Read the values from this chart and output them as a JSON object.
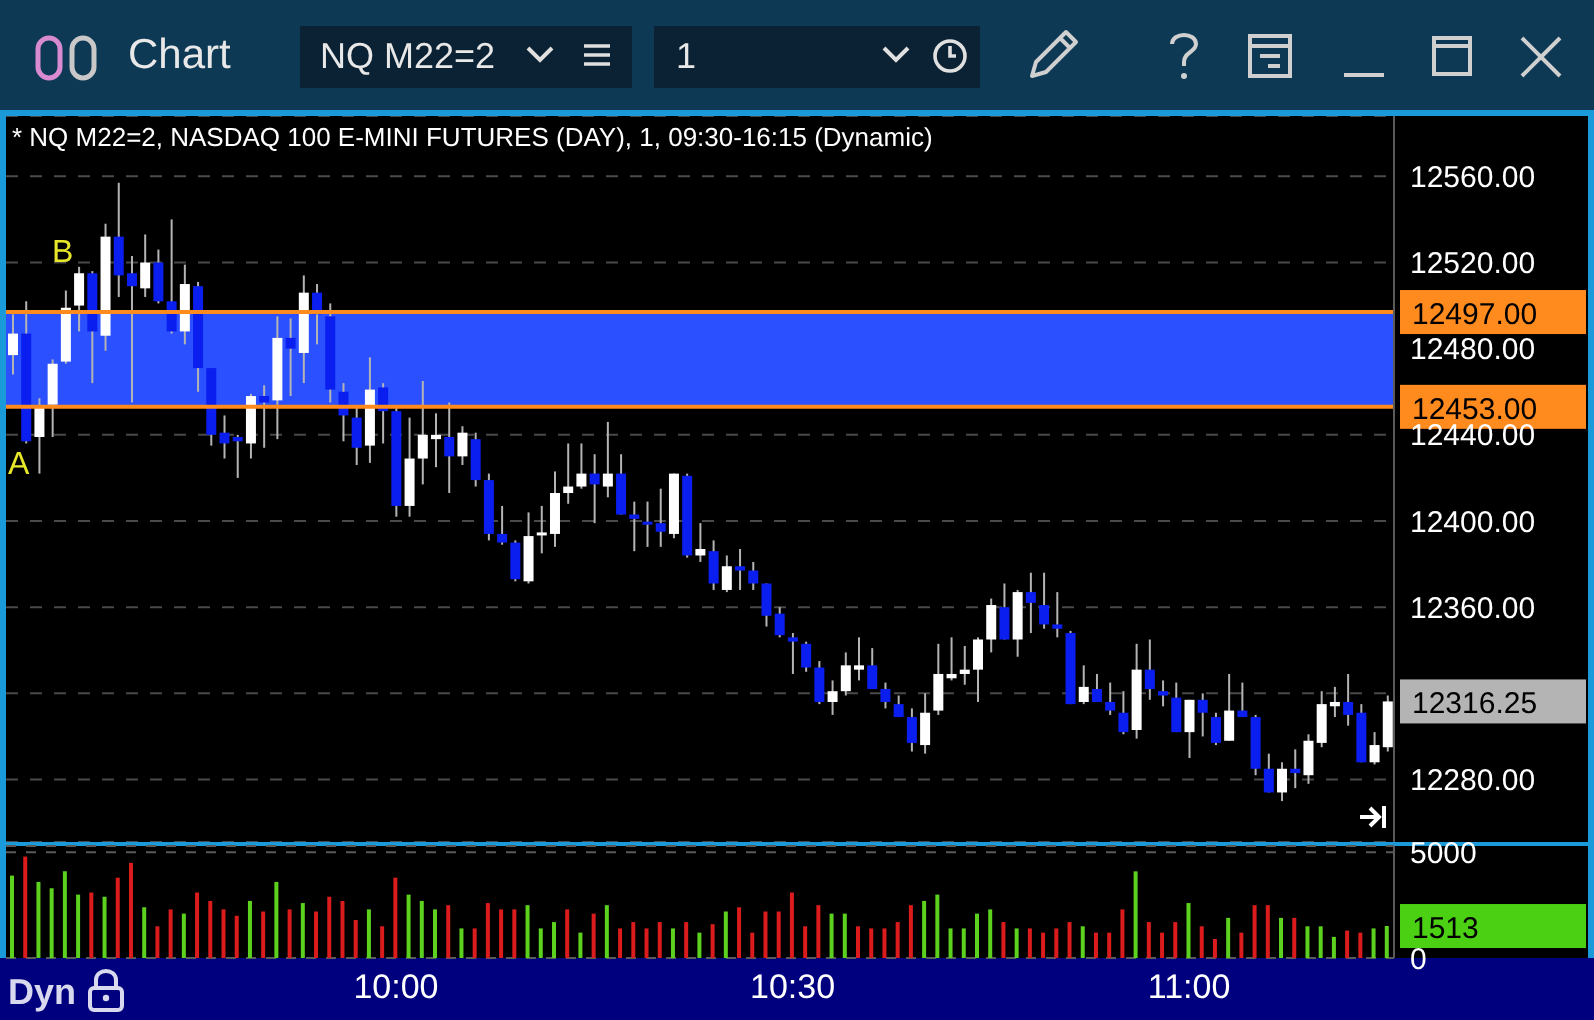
{
  "chart_data": [
    {
      "type": "candlestick",
      "title": "* NQ M22=2, NASDAQ 100 E-MINI FUTURES (DAY), 1, 09:30-16:15 (Dynamic)",
      "categories": [
        null,
        null,
        null,
        null,
        null,
        null,
        null,
        null,
        null,
        null,
        null,
        null,
        null,
        null,
        null,
        null,
        null,
        null,
        null,
        null,
        null,
        null,
        null,
        null,
        null,
        null,
        null,
        null,
        null,
        null,
        null,
        null,
        null,
        null,
        null,
        null,
        null,
        null,
        null,
        null,
        null,
        null,
        null,
        null,
        null,
        null,
        null,
        null,
        null,
        null,
        null,
        null,
        null,
        null,
        null,
        null,
        null,
        null,
        null,
        null,
        null,
        null,
        null,
        null,
        null,
        null,
        null,
        null,
        null,
        null,
        null,
        null,
        null,
        null,
        null,
        null,
        null,
        null,
        null,
        null,
        null,
        null,
        null,
        null,
        null,
        null,
        null,
        null,
        null,
        null,
        null,
        null,
        null,
        null,
        null,
        null,
        null,
        null,
        null,
        null,
        null,
        null,
        null,
        null,
        null
      ],
      "ohlc": [
        [
          12477,
          12496,
          12468,
          12487
        ],
        [
          12487,
          12502,
          12436,
          12437
        ],
        [
          12439,
          12457,
          12422,
          12453
        ],
        [
          12454,
          12475,
          12439,
          12473
        ],
        [
          12474,
          12507,
          12473,
          12499
        ],
        [
          12500,
          12518,
          12488,
          12515
        ],
        [
          12515,
          12516,
          12464,
          12488
        ],
        [
          12486,
          12538,
          12479,
          12532
        ],
        [
          12532,
          12557,
          12504,
          12514
        ],
        [
          12515,
          12523,
          12455,
          12509
        ],
        [
          12508,
          12533,
          12504,
          12520
        ],
        [
          12520,
          12526,
          12501,
          12502
        ],
        [
          12502,
          12540,
          12487,
          12488
        ],
        [
          12488,
          12519,
          12482,
          12510
        ],
        [
          12509,
          12511,
          12460,
          12471
        ],
        [
          12471,
          12471,
          12435,
          12440
        ],
        [
          12441,
          12449,
          12429,
          12436
        ],
        [
          12439,
          12440,
          12420,
          12437
        ],
        [
          12436,
          12459,
          12429,
          12458
        ],
        [
          12458,
          12463,
          12434,
          12455
        ],
        [
          12456,
          12495,
          12438,
          12485
        ],
        [
          12485,
          12494,
          12458,
          12480
        ],
        [
          12478,
          12514,
          12464,
          12506
        ],
        [
          12506,
          12510,
          12482,
          12496
        ],
        [
          12495,
          12501,
          12455,
          12461
        ],
        [
          12460,
          12464,
          12437,
          12449
        ],
        [
          12448,
          12453,
          12426,
          12434
        ],
        [
          12435,
          12476,
          12427,
          12461
        ],
        [
          12462,
          12464,
          12436,
          12451
        ],
        [
          12451,
          12453,
          12402,
          12407
        ],
        [
          12407,
          12448,
          12402,
          12429
        ],
        [
          12429,
          12465,
          12417,
          12440
        ],
        [
          12438,
          12450,
          12425,
          12440
        ],
        [
          12439,
          12455,
          12413,
          12430
        ],
        [
          12430,
          12444,
          12426,
          12441
        ],
        [
          12438,
          12441,
          12416,
          12419
        ],
        [
          12419,
          12422,
          12391,
          12394
        ],
        [
          12394,
          12407,
          12389,
          12390
        ],
        [
          12390,
          12391,
          12372,
          12373
        ],
        [
          12372,
          12404,
          12371,
          12393
        ],
        [
          12393,
          12407,
          12385,
          12394
        ],
        [
          12394,
          12423,
          12388,
          12413
        ],
        [
          12413,
          12436,
          12408,
          12416
        ],
        [
          12416,
          12436,
          12415,
          12422
        ],
        [
          12422,
          12431,
          12399,
          12417
        ],
        [
          12416,
          12446,
          12411,
          12422
        ],
        [
          12422,
          12431,
          12403,
          12403
        ],
        [
          12403,
          12409,
          12386,
          12401
        ],
        [
          12399,
          12409,
          12388,
          12398
        ],
        [
          12399,
          12415,
          12388,
          12395
        ],
        [
          12394,
          12422,
          12392,
          12422
        ],
        [
          12421,
          12422,
          12383,
          12384
        ],
        [
          12384,
          12399,
          12381,
          12387
        ],
        [
          12386,
          12391,
          12368,
          12371
        ],
        [
          12368,
          12384,
          12367,
          12379
        ],
        [
          12379,
          12387,
          12368,
          12377
        ],
        [
          12377,
          12381,
          12368,
          12371
        ],
        [
          12371,
          12371,
          12351,
          12356
        ],
        [
          12357,
          12360,
          12346,
          12347
        ],
        [
          12346,
          12348,
          12329,
          12344
        ],
        [
          12343,
          12344,
          12330,
          12332
        ],
        [
          12332,
          12335,
          12315,
          12316
        ],
        [
          12316,
          12326,
          12310,
          12321
        ],
        [
          12321,
          12339,
          12319,
          12333
        ],
        [
          12331,
          12346,
          12326,
          12333
        ],
        [
          12333,
          12341,
          12322,
          12322
        ],
        [
          12322,
          12325,
          12313,
          12316
        ],
        [
          12315,
          12319,
          12309,
          12309
        ],
        [
          12309,
          12313,
          12293,
          12297
        ],
        [
          12296,
          12320,
          12292,
          12311
        ],
        [
          12312,
          12343,
          12310,
          12329
        ],
        [
          12327,
          12346,
          12326,
          12329
        ],
        [
          12329,
          12342,
          12324,
          12331
        ],
        [
          12331,
          12346,
          12316,
          12345
        ],
        [
          12345,
          12364,
          12339,
          12361
        ],
        [
          12360,
          12371,
          12345,
          12345
        ],
        [
          12345,
          12368,
          12337,
          12367
        ],
        [
          12367,
          12376,
          12348,
          12362
        ],
        [
          12361,
          12376,
          12350,
          12352
        ],
        [
          12352,
          12367,
          12346,
          12350
        ],
        [
          12348,
          12349,
          12315,
          12315
        ],
        [
          12316,
          12333,
          12315,
          12323
        ],
        [
          12322,
          12329,
          12316,
          12316
        ],
        [
          12316,
          12325,
          12310,
          12312
        ],
        [
          12311,
          12321,
          12301,
          12302
        ],
        [
          12303,
          12343,
          12299,
          12331
        ],
        [
          12331,
          12345,
          12317,
          12322
        ],
        [
          12321,
          12326,
          12314,
          12319
        ],
        [
          12318,
          12325,
          12302,
          12302
        ],
        [
          12302,
          12317,
          12290,
          12317
        ],
        [
          12317,
          12320,
          12300,
          12311
        ],
        [
          12309,
          12311,
          12296,
          12297
        ],
        [
          12298,
          12329,
          12298,
          12312
        ],
        [
          12312,
          12325,
          12309,
          12309
        ],
        [
          12309,
          12310,
          12282,
          12285
        ],
        [
          12285,
          12292,
          12274,
          12274
        ],
        [
          12274,
          12288,
          12270,
          12285
        ],
        [
          12285,
          12294,
          12276,
          12283
        ],
        [
          12282,
          12301,
          12278,
          12298
        ],
        [
          12297,
          12321,
          12295,
          12315
        ],
        [
          12314,
          12323,
          12309,
          12316
        ],
        [
          12316,
          12329,
          12305,
          12310
        ],
        [
          12311,
          12315,
          12288,
          12288
        ],
        [
          12288,
          12302,
          12287,
          12296
        ],
        [
          12295,
          12319,
          12293,
          12316.25
        ]
      ],
      "colors": [
        "#ffffff",
        "#0a1ef0",
        "#ffffff",
        "#ffffff",
        "#ffffff",
        "#ffffff",
        "#0a1ef0",
        "#ffffff",
        "#0a1ef0",
        "#0a1ef0",
        "#ffffff",
        "#0a1ef0",
        "#0a1ef0",
        "#ffffff",
        "#0a1ef0",
        "#0a1ef0",
        "#0a1ef0",
        "#0a1ef0",
        "#ffffff",
        "#0a1ef0",
        "#ffffff",
        "#0a1ef0",
        "#ffffff",
        "#0a1ef0",
        "#0a1ef0",
        "#0a1ef0",
        "#0a1ef0",
        "#ffffff",
        "#0a1ef0",
        "#0a1ef0",
        "#ffffff",
        "#ffffff",
        "#ffffff",
        "#0a1ef0",
        "#ffffff",
        "#0a1ef0",
        "#0a1ef0",
        "#0a1ef0",
        "#0a1ef0",
        "#ffffff",
        "#ffffff",
        "#ffffff",
        "#ffffff",
        "#ffffff",
        "#0a1ef0",
        "#ffffff",
        "#0a1ef0",
        "#0a1ef0",
        "#0a1ef0",
        "#0a1ef0",
        "#ffffff",
        "#0a1ef0",
        "#ffffff",
        "#0a1ef0",
        "#ffffff",
        "#0a1ef0",
        "#0a1ef0",
        "#0a1ef0",
        "#0a1ef0",
        "#0a1ef0",
        "#0a1ef0",
        "#0a1ef0",
        "#ffffff",
        "#ffffff",
        "#ffffff",
        "#0a1ef0",
        "#0a1ef0",
        "#0a1ef0",
        "#0a1ef0",
        "#ffffff",
        "#ffffff",
        "#ffffff",
        "#ffffff",
        "#ffffff",
        "#ffffff",
        "#0a1ef0",
        "#ffffff",
        "#0a1ef0",
        "#0a1ef0",
        "#0a1ef0",
        "#0a1ef0",
        "#ffffff",
        "#0a1ef0",
        "#0a1ef0",
        "#0a1ef0",
        "#ffffff",
        "#0a1ef0",
        "#0a1ef0",
        "#0a1ef0",
        "#ffffff",
        "#0a1ef0",
        "#0a1ef0",
        "#ffffff",
        "#0a1ef0",
        "#0a1ef0",
        "#0a1ef0",
        "#ffffff",
        "#0a1ef0",
        "#ffffff",
        "#ffffff",
        "#ffffff",
        "#0a1ef0",
        "#0a1ef0",
        "#ffffff",
        "#ffffff"
      ],
      "ylim": [
        12251,
        12588
      ],
      "yticks": [
        {
          "value": 12280,
          "label": "12280.00"
        },
        {
          "value": 12320,
          "label": null
        },
        {
          "value": 12360,
          "label": "12360.00"
        },
        {
          "value": 12400,
          "label": "12400.00"
        },
        {
          "value": 12440,
          "label": "12440.00"
        },
        {
          "value": 12480,
          "label": "12480.00"
        },
        {
          "value": 12520,
          "label": "12520.00"
        },
        {
          "value": 12560,
          "label": "12560.00"
        }
      ],
      "grid": "y",
      "tick_labels": "y",
      "bands": [
        {
          "axis": "y",
          "from": 12453,
          "to": 12497,
          "color": "#2a50ff"
        }
      ],
      "ref_lines": [
        {
          "axis": "y",
          "value": 12497,
          "label": "12497.00",
          "color": "#ff8a1e",
          "line_style": "solid"
        },
        {
          "axis": "y",
          "value": 12453,
          "label": "12453.00",
          "color": "#ff8a1e",
          "line_style": "solid"
        }
      ],
      "annotations": [
        "Chart",
        "NQ M22=2",
        "1",
        "Dyn",
        "A",
        "B",
        "12316.25"
      ]
    },
    {
      "type": "bar",
      "categories": [
        null,
        null,
        null,
        null,
        null,
        null,
        null,
        null,
        null,
        null,
        null,
        null,
        null,
        null,
        null,
        null,
        null,
        null,
        null,
        null,
        null,
        null,
        null,
        null,
        null,
        null,
        null,
        null,
        null,
        "10:00",
        null,
        null,
        null,
        null,
        null,
        null,
        null,
        null,
        null,
        null,
        null,
        null,
        null,
        null,
        null,
        null,
        null,
        null,
        null,
        null,
        null,
        null,
        null,
        null,
        null,
        null,
        null,
        null,
        null,
        "10:30",
        null,
        null,
        null,
        null,
        null,
        null,
        null,
        null,
        null,
        null,
        null,
        null,
        null,
        null,
        null,
        null,
        null,
        null,
        null,
        null,
        null,
        null,
        null,
        null,
        null,
        null,
        null,
        null,
        null,
        "11:00",
        null,
        null,
        null,
        null,
        null,
        null,
        null,
        null,
        null,
        null,
        null,
        null,
        null,
        null,
        null
      ],
      "values": [
        3900,
        4800,
        3600,
        3300,
        4100,
        3000,
        3100,
        2900,
        3800,
        4500,
        2400,
        1500,
        2300,
        2100,
        3100,
        2700,
        2300,
        2000,
        2700,
        2200,
        3600,
        2300,
        2600,
        2200,
        2900,
        2700,
        1800,
        2300,
        1500,
        3800,
        3000,
        2700,
        2300,
        2500,
        1400,
        1400,
        2600,
        2300,
        2300,
        2500,
        1400,
        1700,
        2300,
        1200,
        2100,
        2500,
        1400,
        1700,
        1400,
        1700,
        1400,
        1700,
        1200,
        1600,
        2200,
        2400,
        1200,
        2200,
        2200,
        3100,
        1500,
        2500,
        2100,
        2100,
        1500,
        1400,
        1400,
        1700,
        2500,
        2700,
        3000,
        1400,
        1400,
        2100,
        2300,
        1700,
        1400,
        1400,
        1200,
        1400,
        1700,
        1500,
        1200,
        1200,
        2300,
        4100,
        1700,
        1200,
        1700,
        2600,
        1500,
        900,
        1900,
        1200,
        2500,
        2500,
        1900,
        1900,
        1500,
        1500,
        1000,
        1300,
        1200,
        1400,
        1513
      ],
      "colors": [
        "#5cd21e",
        "#dc1c1c",
        "#5cd21e",
        "#5cd21e",
        "#5cd21e",
        "#5cd21e",
        "#dc1c1c",
        "#5cd21e",
        "#dc1c1c",
        "#dc1c1c",
        "#5cd21e",
        "#dc1c1c",
        "#dc1c1c",
        "#5cd21e",
        "#dc1c1c",
        "#dc1c1c",
        "#dc1c1c",
        "#dc1c1c",
        "#5cd21e",
        "#dc1c1c",
        "#5cd21e",
        "#dc1c1c",
        "#5cd21e",
        "#dc1c1c",
        "#dc1c1c",
        "#dc1c1c",
        "#dc1c1c",
        "#5cd21e",
        "#dc1c1c",
        "#dc1c1c",
        "#5cd21e",
        "#5cd21e",
        "#5cd21e",
        "#dc1c1c",
        "#5cd21e",
        "#dc1c1c",
        "#dc1c1c",
        "#dc1c1c",
        "#dc1c1c",
        "#5cd21e",
        "#5cd21e",
        "#5cd21e",
        "#dc1c1c",
        "#5cd21e",
        "#dc1c1c",
        "#5cd21e",
        "#dc1c1c",
        "#dc1c1c",
        "#dc1c1c",
        "#dc1c1c",
        "#5cd21e",
        "#dc1c1c",
        "#5cd21e",
        "#dc1c1c",
        "#5cd21e",
        "#dc1c1c",
        "#dc1c1c",
        "#dc1c1c",
        "#dc1c1c",
        "#dc1c1c",
        "#dc1c1c",
        "#dc1c1c",
        "#5cd21e",
        "#5cd21e",
        "#dc1c1c",
        "#dc1c1c",
        "#dc1c1c",
        "#dc1c1c",
        "#dc1c1c",
        "#5cd21e",
        "#5cd21e",
        "#5cd21e",
        "#5cd21e",
        "#5cd21e",
        "#5cd21e",
        "#dc1c1c",
        "#5cd21e",
        "#dc1c1c",
        "#dc1c1c",
        "#dc1c1c",
        "#dc1c1c",
        "#5cd21e",
        "#dc1c1c",
        "#dc1c1c",
        "#dc1c1c",
        "#5cd21e",
        "#dc1c1c",
        "#dc1c1c",
        "#dc1c1c",
        "#5cd21e",
        "#dc1c1c",
        "#dc1c1c",
        "#5cd21e",
        "#dc1c1c",
        "#dc1c1c",
        "#dc1c1c",
        "#5cd21e",
        "#dc1c1c",
        "#5cd21e",
        "#5cd21e",
        "#5cd21e",
        "#dc1c1c",
        "#dc1c1c",
        "#5cd21e",
        "#5cd21e"
      ],
      "ylim": [
        0,
        5300
      ],
      "yticks": [
        0,
        5000
      ],
      "grid": "y",
      "annotations": [
        "1513"
      ]
    }
  ]
}
